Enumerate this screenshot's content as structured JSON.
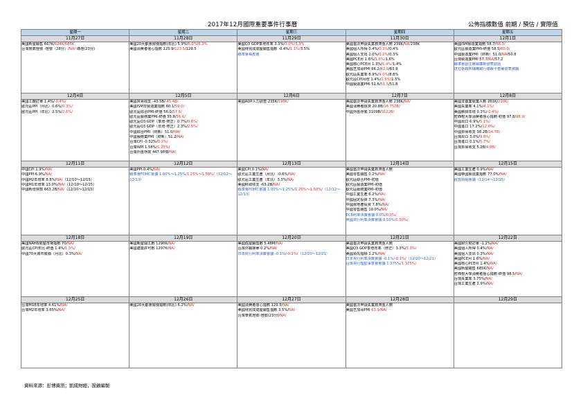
{
  "header": {
    "title": "2017年12月國際重要事件行事曆",
    "legend": "公佈指標數值 前期 / 預估 / 實際值"
  },
  "days": [
    "星期一",
    "星期二",
    "星期三",
    "星期四",
    "星期五"
  ],
  "weeks": [
    {
      "dates": [
        "11月27日",
        "11月28日",
        "11月29日",
        "11月30日",
        "12月1日"
      ],
      "cells": [
        [
          {
            "t": "美國新屋銷售 667K/",
            "r": "624K/685K"
          },
          {
            "t": "台灣景氣燈號 -燈號（28分）/",
            "r": "NA/",
            "t2": " 綠燈(23分)"
          }
        ],
        [
          {
            "t": "美國20大都會房價指數(年比) 5.9%/",
            "r": "6.0%/6.2%"
          },
          {
            "t": "美國消費者信心指數 125.9/",
            "r": "123.5",
            "t2": "/129.5"
          }
        ],
        [
          {
            "t": "美國Q3 GDP季增年率 3.3%/",
            "r": "3.0%/3.3%"
          },
          {
            "t": "美國待完成成屋銷售指數 -0.4%/",
            "r": "1.1%/",
            "t2": "3.5%"
          },
          {
            "b": "聯準會褐皮書"
          }
        ],
        [
          {
            "t": "美國首次申請失業救濟金人數 239K/",
            "r": "NA/",
            "t2": "238K"
          },
          {
            "t": "美國個人所得 0.4%/",
            "r": "0.3%",
            "t2": "/0.4%"
          },
          {
            "t": "美國個人支出 1.0%/",
            "r": "0.2%",
            "t2": "/0.3%"
          },
          {
            "t": "美國PCE月 1.6%/",
            "r": "1.6%/",
            "t2": "1.6%"
          },
          {
            "t": "美國核心PCE月 1.3%/",
            "r": "1.4%/",
            "t2": "1.4%"
          },
          {
            "t": "美國芝加哥PMI 66.2/",
            "r": "62.0",
            "t2": "/63.9"
          },
          {
            "t": "歐元區失業率 8.9%/",
            "r": "9.0%",
            "t2": "/8.8%"
          },
          {
            "t": "歐元區CPI月增 1.4%/",
            "r": "1.5%/",
            "t2": "1.5%"
          },
          {
            "t": "中國製造業PMI 51.6/",
            "r": "51.5",
            "t2": "/51.8"
          }
        ],
        [
          {
            "t": "美國ISM製造業指數 58.7/",
            "r": "58.3/"
          },
          {
            "t": "歐元區製造業PMI-終值 58.5/",
            "r": "60.0/"
          },
          {
            "t": "中國製造業PMI（財新）51.0/",
            "r": "NA",
            "t2": "/50.8"
          },
          {
            "t": "台灣製造業PMI 57.7/",
            "r": "NA",
            "t2": "/57.2"
          },
          {
            "b": "聯準會副主席威廉斯發表談話"
          },
          {
            "b": "達拉斯聯邦儲備銀行總裁卡普蘭發表演講"
          }
        ]
      ]
    },
    {
      "dates": [
        "12月4日",
        "12月5日",
        "12月6日",
        "12月7日",
        "12月8日"
      ],
      "cells": [
        [
          {
            "t": "美國工廠訂單 1.4%/",
            "r": "-0.4%/"
          },
          {
            "t": "歐元區PPI（月比）0.6%/",
            "r": "0.3%/"
          },
          {
            "t": "歐元區PPI（年比）2.5%/",
            "r": "2.6%/"
          }
        ],
        [
          {
            "t": "美國貿易收支 -43.5B/",
            "r": "-45.4B/"
          },
          {
            "t": "美國ISM非製造業指數 60.1/",
            "r": "59.0/"
          },
          {
            "t": "歐元區綜合PMI-終值 56.0/",
            "r": "57.6/"
          },
          {
            "t": "歐元區服務業PMI-終值 55.8/",
            "r": "56.6/"
          },
          {
            "t": "歐元區Q3 GDP（季增-修正）0.7%/",
            "r": "0.6%/"
          },
          {
            "t": "歐元區Q3 GDP（年增-修正）2.3%/",
            "r": "2.5%/"
          },
          {
            "t": "中國綜合PMI（財新）51.0/",
            "r": "NA/"
          },
          {
            "t": "中國服務業PMI（財新）51.2/",
            "r": "NA/"
          },
          {
            "t": "台灣CPI -0.32%/",
            "r": "0.2%/"
          },
          {
            "t": "台灣WPI 1.58%/",
            "r": "1.25%/"
          },
          {
            "t": "台灣外匯存底 447.98億/",
            "r": "NA/"
          }
        ],
        [
          {
            "t": "美國ADP人力調查 235K/",
            "r": "190K/"
          }
        ],
        [
          {
            "t": "美國首次申請失業救濟金人數 238K/",
            "r": "NA/"
          },
          {
            "t": "美國消費者信貸 20.8B/",
            "r": "16.750B/"
          },
          {
            "t": "中國外匯存底 3109B/",
            "r": "3122B/"
          }
        ],
        [
          {
            "t": "美國非農業就業人數 261K/",
            "r": "210K/"
          },
          {
            "t": "美國失業率 4.1%/",
            "r": "4.1%/"
          },
          {
            "t": "美國薪資年增 0.3%/",
            "r": "-0.4%/"
          },
          {
            "t": "密西根大學消費者信心指數-初值 97.8/",
            "r": "98.9/"
          },
          {
            "t": "中國出口 6.9%/",
            "r": "5.1%/"
          },
          {
            "t": "中國進口 17.2%/",
            "r": "12.0%/"
          },
          {
            "t": "中國貿易收支 38.2B/",
            "r": "34.7B/"
          },
          {
            "t": "台灣出口 3.0%/",
            "r": "9.8%/"
          },
          {
            "t": "台灣進口 0.1%/",
            "r": "5.7%/"
          },
          {
            "t": "台灣貿易收支 5.2B/",
            "r": "4.9B/"
          }
        ]
      ]
    },
    {
      "dates": [
        "12月11日",
        "12月12日",
        "12月13日",
        "12月14日",
        "12月15日"
      ],
      "cells": [
        [
          {
            "t": "中國CPI 1.9%/",
            "r": "NA/"
          },
          {
            "t": "中國PPI 6.9%/",
            "r": "NA/"
          },
          {
            "t": "中國M2年增率 8.8%/",
            "r": "NA/",
            "t2": "（12/10～12/15）"
          },
          {
            "t": "中國M1年增率 13.0%/",
            "r": "NA/",
            "t2": "（12/10～12/15）"
          },
          {
            "t": "中國新增貸款 663.2B/",
            "r": "NA/",
            "t2": "（12/10～12/15）"
          }
        ],
        [
          {
            "t": "美國PPI 0.4%/",
            "r": "NA/"
          },
          {
            "b": "聯準會FOMC會議 1.00%～1.25%/",
            "r": "1.25%～1.50%/",
            "b2": "（12/12～12/13）",
            "wrap": true
          }
        ],
        [
          {
            "t": "美國CPI 0.1%/",
            "r": "NA/"
          },
          {
            "t": "歐元區工業生產（月比）-0.6%/",
            "r": "NA/"
          },
          {
            "t": "歐元區工業生產（年比）3.3%/",
            "r": "NA/"
          },
          {
            "t": "美國財政收支 -63.2B/",
            "r": "NA/"
          },
          {
            "b": "聯準會FOMC會議 1.00%～1.25%/",
            "r": "1.25%～1.50%/",
            "b2": "（12/12～12/13）",
            "wrap": true
          }
        ],
        [
          {
            "t": "美國首次申請失業救濟金人數"
          },
          {
            "t": "美國零售銷售 0.2%/",
            "r": "NA/"
          },
          {
            "t": "歐元區綜合PMI-初值"
          },
          {
            "t": "歐元區製造業PMI-初值"
          },
          {
            "t": "歐元區服務業PMI-初值"
          },
          {
            "t": "中國工業生產 6.2%/",
            "r": "NA/"
          },
          {
            "t": "中國固定投資 7.3%/",
            "r": "NA/"
          },
          {
            "t": "中國房地產投資 7.8%/",
            "r": "NA/"
          },
          {
            "t": "中國零售銷售 10.0%/",
            "r": "NA/"
          },
          {
            "b": "ECB利率決策會議 0.0%/",
            "r": "0.0%/"
          },
          {
            "b": "英國央行利率決策會議 0.50%/",
            "r": "0.50%/"
          }
        ],
        [
          {
            "t": "美國工業生產 0.9%/",
            "r": "NA/"
          },
          {
            "t": "美國帝國製造業指數 77.0%/",
            "r": "NA/"
          },
          {
            "b": "歐盟領袖會議（12/14～12/15）"
          }
        ]
      ]
    },
    {
      "dates": [
        "12月18日",
        "12月19日",
        "12月20日",
        "12月21日",
        "12月22日"
      ],
      "cells": [
        [
          {
            "t": "美國NAHB房屋市場指數 70/",
            "r": "NA/"
          },
          {
            "t": "歐元區CPI年比-終值 1.4%/",
            "r": "1.5%/"
          },
          {
            "t": "中國70大城市房價（月比）0.3%/",
            "r": "NA/"
          }
        ],
        [
          {
            "t": "美國新屋開工數 1290K/",
            "r": "NA/"
          },
          {
            "t": "美國建築許可數 1297K/",
            "r": "NA/"
          }
        ],
        [
          {
            "t": "美國成屋銷售數 5.48M/",
            "r": "NA/"
          },
          {
            "t": "台灣外銷接單 0.2%/",
            "r": "NA/"
          },
          {
            "b": "日本央行利率決策會議 -0.1%/",
            "r": "-0.1%/",
            "b2": "（12/20～12/21）",
            "wrap": true
          }
        ],
        [
          {
            "t": "美國首次申請失業救濟金人數"
          },
          {
            "t": "美國Q3 GDP季增年率（修正）3.3%/",
            "r": "3.3%/"
          },
          {
            "t": "美國領先指標 1.2%/",
            "r": "NA/"
          },
          {
            "b": "日本央行利率決策會議 -0.1%/",
            "r": "-0.1%/",
            "b2": "（12/20～12/21）",
            "wrap": true
          },
          {
            "b": "台灣央行理監事季會會議 1.375%/",
            "r": "1.375%/"
          }
        ],
        [
          {
            "t": "美國耐久財訂單 -1.2%/",
            "r": "NA/"
          },
          {
            "t": "美國個人所得 0.4%/",
            "r": "NA/"
          },
          {
            "t": "美國個人支出 0.3%/",
            "r": "NA/"
          },
          {
            "t": "美國PCE月 1.6%/",
            "r": "NA/"
          },
          {
            "t": "美國核心PCE月 1.4%/",
            "r": "NA/"
          },
          {
            "t": "美國新屋銷售 685K/",
            "r": "NA/"
          },
          {
            "t": "密西根大學消費者信心指數-終值 98.5/",
            "r": "NA/"
          },
          {
            "t": "台灣失業率 3.75%/",
            "r": "NA/"
          },
          {
            "t": "台灣工業生產 2.9%/",
            "r": "NA/"
          }
        ]
      ]
    },
    {
      "dates": [
        "12月25日",
        "12月26日",
        "12月27日",
        "12月28日",
        "12月29日"
      ],
      "cells": [
        [
          {
            "t": "台灣M1B年增率 4.61%/",
            "r": "NA/"
          },
          {
            "t": "台灣M2年增率 3.65%/",
            "r": "NA/"
          }
        ],
        [
          {
            "t": "美國20大都會房價指數(年比) 6.2%/",
            "r": "NA/"
          }
        ],
        [
          {
            "t": "美國消費者信心指數 129.5/",
            "r": "NA/"
          },
          {
            "t": "美國待完成成屋銷售指數 3.5%/",
            "r": "NA/"
          },
          {
            "t": "台灣景氣燈號-燈號(23分)/",
            "r": "NA/"
          }
        ],
        [
          {
            "t": "美國首次申請失業救濟金人數"
          },
          {
            "t": "美國芝加哥PMI ",
            "r": "63.9/NA/"
          }
        ],
        []
      ]
    }
  ],
  "footer": "資料來源：彭博資訊；凱成財經，投顧編製"
}
